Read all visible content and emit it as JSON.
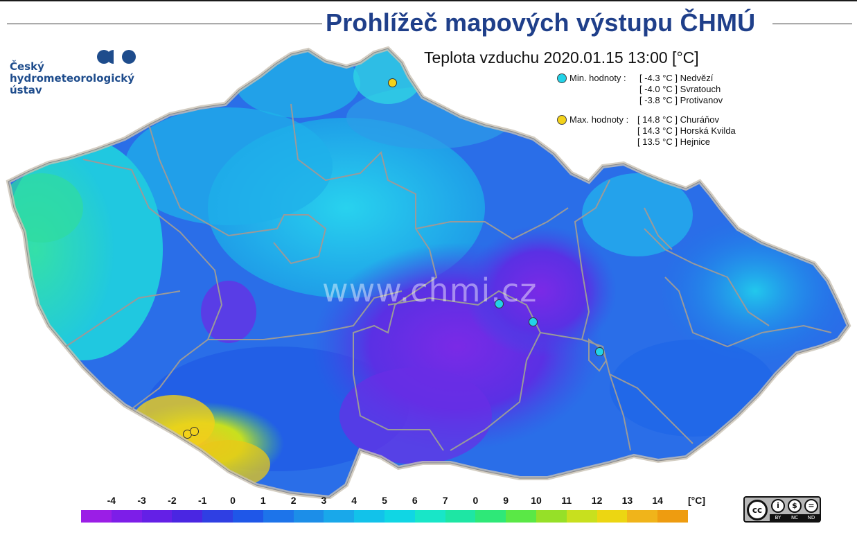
{
  "page": {
    "title": "Prohlížeč mapových výstupu ČHMÚ"
  },
  "logo": {
    "line1": "Český",
    "line2": "hydrometeorologický",
    "line3": "ústav",
    "brand_color": "#1e4c8c"
  },
  "map": {
    "title": "Teplota vzduchu 2020.01.15 13:00 [°C]",
    "watermark": "www.chmi.cz",
    "min_legend": {
      "label": "Min. hodnoty :",
      "marker_color": "#22d3e8",
      "entries": [
        {
          "value": "[ -4.3 °C ]",
          "station": "Nedvězí"
        },
        {
          "value": "[ -4.0 °C ]",
          "station": "Svratouch"
        },
        {
          "value": "[ -3.8 °C ]",
          "station": "Protivanov"
        }
      ]
    },
    "max_legend": {
      "label": "Max. hodnoty :",
      "marker_color": "#f3d21a",
      "entries": [
        {
          "value": "[ 14.8 °C ]",
          "station": "Churáňov"
        },
        {
          "value": "[ 14.3 °C ]",
          "station": "Horská Kvilda"
        },
        {
          "value": "[ 13.5 °C ]",
          "station": "Hejnice"
        }
      ]
    }
  },
  "color_scale": {
    "unit": "[°C]",
    "labels": [
      "-4",
      "-3",
      "-2",
      "-1",
      "0",
      "1",
      "2",
      "3",
      "4",
      "5",
      "6",
      "7",
      "0",
      "9",
      "10",
      "11",
      "12",
      "13",
      "14"
    ],
    "colors": [
      "#9b1ee6",
      "#7d1ee8",
      "#6420e6",
      "#4a26e2",
      "#2f3fe3",
      "#1f57e8",
      "#1d74ea",
      "#1c8ee8",
      "#19a8ea",
      "#12c2ea",
      "#10d6e4",
      "#18e6c8",
      "#1ee6a4",
      "#2ee878",
      "#5ae846",
      "#96e028",
      "#c8e01e",
      "#ecd612",
      "#f0b41a",
      "#ee9c10"
    ]
  },
  "license": {
    "cc": "cc",
    "icons": [
      "i",
      "$",
      "="
    ],
    "tags": [
      "BY",
      "NC",
      "ND"
    ]
  }
}
